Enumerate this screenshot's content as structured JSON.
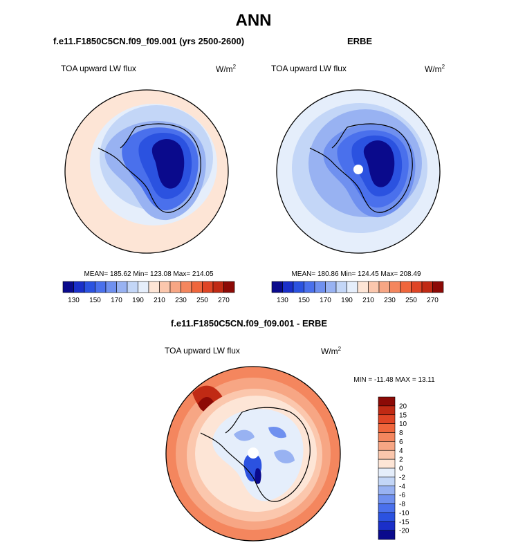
{
  "title": "ANN",
  "panels": [
    {
      "subtitle": "f.e11.F1850C5CN.f09_f09.001 (yrs 2500-2600)",
      "var_label": "TOA upward LW flux",
      "units_base": "W/m",
      "units_sup": "2",
      "stats": "MEAN= 185.62  Min= 123.08  Max= 214.05"
    },
    {
      "subtitle": "ERBE",
      "var_label": "TOA upward LW flux",
      "units_base": "W/m",
      "units_sup": "2",
      "stats": "MEAN= 180.86  Min= 124.45  Max= 208.49"
    },
    {
      "subtitle": "f.e11.F1850C5CN.f09_f09.001 - ERBE",
      "var_label": "TOA upward LW flux",
      "units_base": "W/m",
      "units_sup": "2",
      "stats": "MIN = -11.48 MAX =  13.11"
    }
  ],
  "colorbar_abs": {
    "colors": [
      "#0a0a8c",
      "#1a2fc9",
      "#2b52e0",
      "#4a70ec",
      "#6f90ef",
      "#98b2f2",
      "#c3d6f7",
      "#e5eefb",
      "#fde5d6",
      "#fbc7ad",
      "#f7a684",
      "#f4865e",
      "#ef663c",
      "#df4525",
      "#c02a14",
      "#8c0a06"
    ],
    "tick_labels": [
      "130",
      "150",
      "170",
      "190",
      "210",
      "230",
      "250",
      "270"
    ]
  },
  "colorbar_diff": {
    "colors": [
      "#0a0a8c",
      "#1a2fc9",
      "#2b52e0",
      "#4a70ec",
      "#6f90ef",
      "#98b2f2",
      "#c3d6f7",
      "#e5eefb",
      "#fde5d6",
      "#fbc7ad",
      "#f7a684",
      "#f4865e",
      "#ef663c",
      "#df4525",
      "#c02a14",
      "#8c0a06"
    ],
    "tick_labels": [
      "20",
      "15",
      "10",
      "8",
      "6",
      "4",
      "2",
      "0",
      "-2",
      "-4",
      "-6",
      "-8",
      "-10",
      "-15",
      "-20"
    ]
  },
  "chart_data": [
    {
      "type": "heatmap",
      "title": "f.e11.F1850C5CN.f09_f09.001 (yrs 2500-2600)",
      "field": "TOA upward LW flux",
      "units": "W/m2",
      "projection": "south polar stereographic",
      "mean": 185.62,
      "min": 123.08,
      "max": 214.05,
      "levels": [
        130,
        270
      ],
      "level_ticks": [
        130,
        150,
        170,
        190,
        210,
        230,
        250,
        270
      ]
    },
    {
      "type": "heatmap",
      "title": "ERBE",
      "field": "TOA upward LW flux",
      "units": "W/m2",
      "projection": "south polar stereographic",
      "mean": 180.86,
      "min": 124.45,
      "max": 208.49,
      "levels": [
        130,
        270
      ],
      "level_ticks": [
        130,
        150,
        170,
        190,
        210,
        230,
        250,
        270
      ]
    },
    {
      "type": "heatmap",
      "title": "f.e11.F1850C5CN.f09_f09.001 - ERBE",
      "field": "TOA upward LW flux",
      "units": "W/m2",
      "projection": "south polar stereographic",
      "min": -11.48,
      "max": 13.11,
      "level_ticks": [
        -20,
        -15,
        -10,
        -8,
        -6,
        -4,
        -2,
        0,
        2,
        4,
        6,
        8,
        10,
        15,
        20
      ]
    }
  ]
}
